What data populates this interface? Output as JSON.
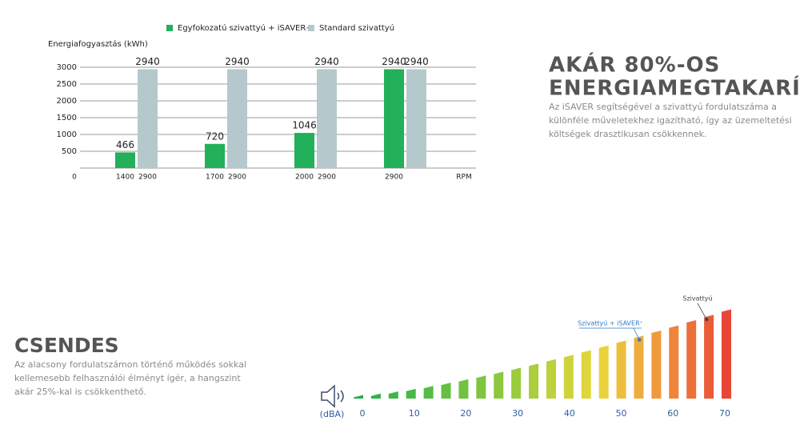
{
  "chart_data": [
    {
      "type": "bar",
      "y_label": "Energiafogyasztás (kWh)",
      "x_label": "RPM",
      "x_start_label": "0",
      "series": [
        {
          "name": "Egyfokozatú szivattyú + iSAVER+",
          "color": "#22b05a",
          "values": [
            466,
            720,
            1046,
            2940
          ],
          "x_labels": [
            "1400",
            "1700",
            "2000",
            "2900"
          ]
        },
        {
          "name": "Standard szivattyú",
          "color": "#b5c9cc",
          "values": [
            2940,
            2940,
            2940,
            2940
          ],
          "x_labels": [
            "2900",
            "2900",
            "2900",
            null
          ]
        }
      ],
      "ylim": [
        0,
        3000
      ],
      "yticks": [
        500,
        1000,
        1500,
        2000,
        2500,
        3000
      ],
      "grid": true
    },
    {
      "type": "level",
      "x_label": "(dBA)",
      "xlim": [
        0,
        70
      ],
      "xticks": [
        0,
        10,
        20,
        30,
        40,
        50,
        60,
        70
      ],
      "annotations": [
        {
          "label": "Szivattyú + iSAVER⁺",
          "value": 53.5,
          "color": "#2f78c4"
        },
        {
          "label": "Szivattyú",
          "value": 66.5,
          "color": "#444444"
        }
      ]
    }
  ],
  "savings": {
    "title_lines": [
      "AKÁR 80%-OS",
      "ENERGIAMEGTAKARÍTÁS"
    ],
    "text_lines": [
      "Az iSAVER segítségével a szivattyú fordulatszáma a",
      "különféle műveletekhez igazítható, így az üzemeltetési",
      "költségek drasztikusan csökkennek."
    ]
  },
  "quiet": {
    "title": "CSENDES",
    "text_lines": [
      "Az alacsony fordulatszámon történő működés sokkal",
      "kellemesebb felhasználói élményt ígér, a hangszint",
      "akár 25%-kal is csökkenthető."
    ]
  }
}
